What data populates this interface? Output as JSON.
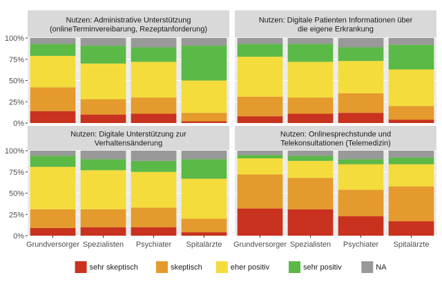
{
  "chart_data": {
    "type": "bar",
    "stacked": true,
    "categories": [
      "Grundversorger",
      "Spezialisten",
      "Psychiater",
      "Spitalärzte"
    ],
    "ylim": [
      0,
      100
    ],
    "yticks": [
      0,
      25,
      50,
      75,
      100
    ],
    "ytick_labels": [
      "0%",
      "25%",
      "50%",
      "75%",
      "100%"
    ],
    "legend": {
      "position": "bottom",
      "entries": [
        {
          "name": "sehr skeptisch",
          "color": "#c8321e"
        },
        {
          "name": "skeptisch",
          "color": "#e49a2c"
        },
        {
          "name": "eher positiv",
          "color": "#f4dc3c"
        },
        {
          "name": "sehr positiv",
          "color": "#5bb947"
        },
        {
          "name": "NA",
          "color": "#999999"
        }
      ]
    },
    "panels": [
      {
        "title": [
          "Nutzen: Administrative Unterstützung",
          "(onlineTerminvereibarung, Rezeptanforderung)"
        ],
        "series": [
          {
            "name": "sehr skeptisch",
            "values": [
              14,
              10,
              11,
              2
            ]
          },
          {
            "name": "skeptisch",
            "values": [
              28,
              18,
              19,
              10
            ]
          },
          {
            "name": "eher positiv",
            "values": [
              37,
              42,
              42,
              38
            ]
          },
          {
            "name": "sehr positiv",
            "values": [
              14,
              21,
              17,
              41
            ]
          },
          {
            "name": "NA",
            "values": [
              7,
              9,
              11,
              9
            ]
          }
        ]
      },
      {
        "title": [
          "Nutzen: Digitale Patienten Informationen über",
          "die eigene Erkrankung"
        ],
        "series": [
          {
            "name": "sehr skeptisch",
            "values": [
              8,
              11,
              12,
              4
            ]
          },
          {
            "name": "skeptisch",
            "values": [
              23,
              19,
              23,
              16
            ]
          },
          {
            "name": "eher positiv",
            "values": [
              47,
              42,
              38,
              43
            ]
          },
          {
            "name": "sehr positiv",
            "values": [
              15,
              21,
              16,
              29
            ]
          },
          {
            "name": "NA",
            "values": [
              7,
              7,
              11,
              8
            ]
          }
        ]
      },
      {
        "title": [
          "Nutzen: Digitale Unterstützung zur",
          "Verhaltensänderung"
        ],
        "series": [
          {
            "name": "sehr skeptisch",
            "values": [
              9,
              10,
              10,
              4
            ]
          },
          {
            "name": "skeptisch",
            "values": [
              22,
              21,
              23,
              16
            ]
          },
          {
            "name": "eher positiv",
            "values": [
              50,
              46,
              42,
              47
            ]
          },
          {
            "name": "sehr positiv",
            "values": [
              13,
              13,
              13,
              23
            ]
          },
          {
            "name": "NA",
            "values": [
              6,
              10,
              12,
              10
            ]
          }
        ]
      },
      {
        "title": [
          "Nutzen: Onlinesprechstunde und",
          "Telekonsultationen (Telemedizin)"
        ],
        "series": [
          {
            "name": "sehr skeptisch",
            "values": [
              32,
              31,
              23,
              17
            ]
          },
          {
            "name": "skeptisch",
            "values": [
              40,
              37,
              31,
              41
            ]
          },
          {
            "name": "eher positiv",
            "values": [
              19,
              20,
              30,
              26
            ]
          },
          {
            "name": "sehr positiv",
            "values": [
              4,
              6,
              6,
              8
            ]
          },
          {
            "name": "NA",
            "values": [
              5,
              6,
              10,
              8
            ]
          }
        ]
      }
    ]
  }
}
